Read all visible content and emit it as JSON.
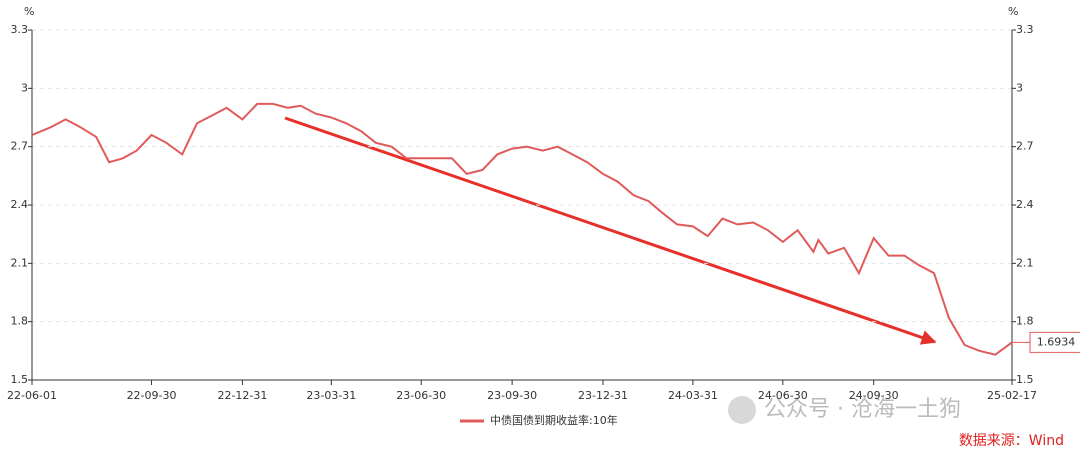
{
  "chart_data": {
    "type": "line",
    "y_unit": "%",
    "y2_unit": "%",
    "x": [
      "22-06-01",
      "22-06-20",
      "22-07-05",
      "22-07-20",
      "22-08-05",
      "22-08-18",
      "22-09-01",
      "22-09-15",
      "22-09-30",
      "22-10-15",
      "22-10-31",
      "22-11-15",
      "22-11-30",
      "22-12-15",
      "22-12-31",
      "23-01-15",
      "23-01-31",
      "23-02-15",
      "23-02-28",
      "23-03-15",
      "23-03-31",
      "23-04-15",
      "23-04-30",
      "23-05-15",
      "23-05-31",
      "23-06-15",
      "23-06-30",
      "23-07-15",
      "23-07-31",
      "23-08-15",
      "23-08-31",
      "23-09-15",
      "23-09-30",
      "23-10-15",
      "23-10-31",
      "23-11-15",
      "23-11-30",
      "23-12-15",
      "23-12-31",
      "24-01-15",
      "24-01-31",
      "24-02-15",
      "24-02-29",
      "24-03-15",
      "24-03-31",
      "24-04-15",
      "24-04-30",
      "24-05-15",
      "24-05-31",
      "24-06-15",
      "24-06-30",
      "24-07-15",
      "24-07-31",
      "24-08-05",
      "24-08-15",
      "24-08-31",
      "24-09-15",
      "24-09-30",
      "24-10-15",
      "24-10-31",
      "24-11-15",
      "24-11-30",
      "24-12-15",
      "24-12-31",
      "25-01-15",
      "25-01-31",
      "25-02-17"
    ],
    "series": [
      {
        "name": "中债国债到期收益率:10年",
        "color": "#e05a5a",
        "values": [
          2.76,
          2.8,
          2.84,
          2.8,
          2.75,
          2.62,
          2.64,
          2.68,
          2.76,
          2.72,
          2.66,
          2.82,
          2.86,
          2.9,
          2.84,
          2.92,
          2.92,
          2.9,
          2.91,
          2.87,
          2.85,
          2.82,
          2.78,
          2.72,
          2.7,
          2.64,
          2.64,
          2.64,
          2.64,
          2.56,
          2.58,
          2.66,
          2.69,
          2.7,
          2.68,
          2.7,
          2.66,
          2.62,
          2.56,
          2.52,
          2.45,
          2.42,
          2.36,
          2.3,
          2.29,
          2.24,
          2.33,
          2.3,
          2.31,
          2.27,
          2.21,
          2.27,
          2.16,
          2.22,
          2.15,
          2.18,
          2.05,
          2.23,
          2.14,
          2.14,
          2.09,
          2.05,
          1.82,
          1.68,
          1.65,
          1.63,
          1.6934
        ]
      }
    ],
    "last_label": "1.6934",
    "xticks": [
      "22-06-01",
      "22-09-30",
      "22-12-31",
      "23-03-31",
      "23-06-30",
      "23-09-30",
      "23-12-31",
      "24-03-31",
      "24-06-30",
      "24-09-30",
      "25-02-17"
    ],
    "ylim": [
      1.5,
      3.3
    ],
    "yticks": [
      1.5,
      1.8,
      2.1,
      2.4,
      2.7,
      3,
      3.3
    ],
    "y2lim": [
      1.5,
      3.3
    ],
    "y2ticks": [
      1.5,
      1.8,
      2.1,
      2.4,
      2.7,
      3,
      3.3
    ],
    "grid": true,
    "watermark": "公众号 · 沧海一土狗",
    "source": "数据来源：Wind"
  }
}
